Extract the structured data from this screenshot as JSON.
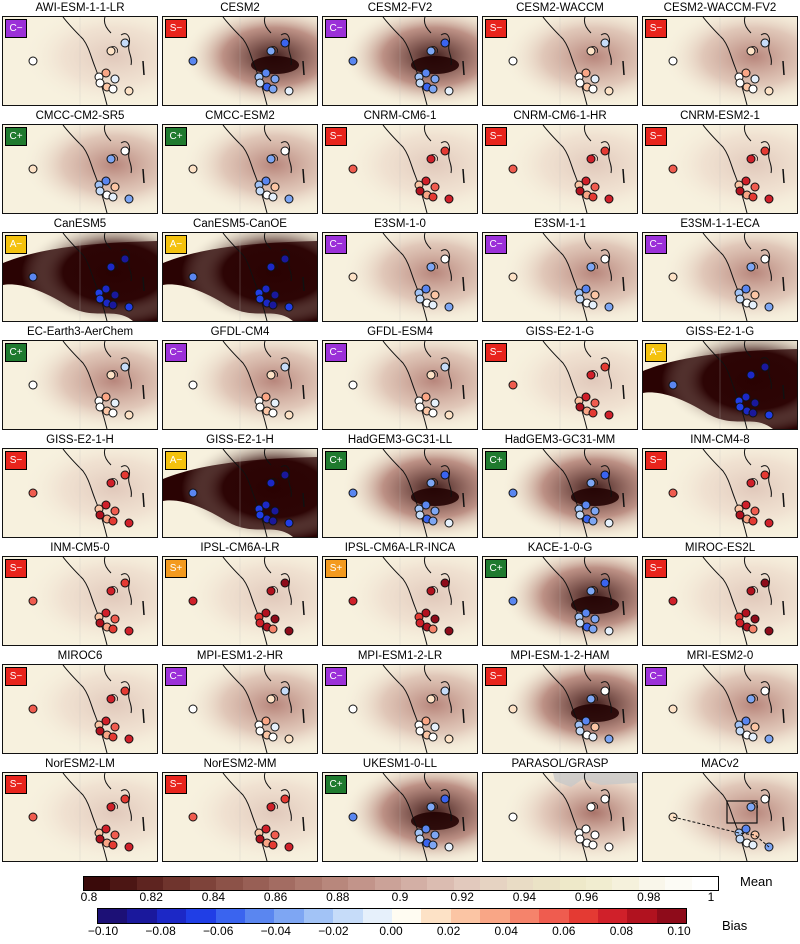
{
  "badge_colors": {
    "C": "#9b30d8",
    "S": "#e8241c",
    "A": "#f4c20d",
    "G": "#1f7a2e"
  },
  "panels": [
    {
      "title": "AWI-ESM-1-1-LR",
      "badge": "C−",
      "badge_color": "C",
      "haze": "light",
      "dots": "pale"
    },
    {
      "title": "CESM2",
      "badge": "S−",
      "badge_color": "S",
      "haze": "dark",
      "dots": "blue"
    },
    {
      "title": "CESM2-FV2",
      "badge": "C−",
      "badge_color": "C",
      "haze": "dark",
      "dots": "blue"
    },
    {
      "title": "CESM2-WACCM",
      "badge": "S−",
      "badge_color": "S",
      "haze": "medium",
      "dots": "pale"
    },
    {
      "title": "CESM2-WACCM-FV2",
      "badge": "S−",
      "badge_color": "S",
      "haze": "medium",
      "dots": "pale"
    },
    {
      "title": "CMCC-CM2-SR5",
      "badge": "C+",
      "badge_color": "G",
      "haze": "medium",
      "dots": "mixed"
    },
    {
      "title": "CMCC-ESM2",
      "badge": "C+",
      "badge_color": "G",
      "haze": "medium",
      "dots": "mixed"
    },
    {
      "title": "CNRM-CM6-1",
      "badge": "S−",
      "badge_color": "S",
      "haze": "light",
      "dots": "red"
    },
    {
      "title": "CNRM-CM6-1-HR",
      "badge": "S−",
      "badge_color": "S",
      "haze": "light",
      "dots": "red"
    },
    {
      "title": "CNRM-ESM2-1",
      "badge": "S−",
      "badge_color": "S",
      "haze": "light",
      "dots": "red"
    },
    {
      "title": "CanESM5",
      "badge": "A−",
      "badge_color": "A",
      "haze": "verydark",
      "dots": "deepblue"
    },
    {
      "title": "CanESM5-CanOE",
      "badge": "A−",
      "badge_color": "A",
      "haze": "verydark",
      "dots": "deepblue"
    },
    {
      "title": "E3SM-1-0",
      "badge": "C−",
      "badge_color": "C",
      "haze": "medium",
      "dots": "mixed"
    },
    {
      "title": "E3SM-1-1",
      "badge": "C−",
      "badge_color": "C",
      "haze": "medium",
      "dots": "mixed"
    },
    {
      "title": "E3SM-1-1-ECA",
      "badge": "C−",
      "badge_color": "C",
      "haze": "medium",
      "dots": "mixed"
    },
    {
      "title": "EC-Earth3-AerChem",
      "badge": "C+",
      "badge_color": "G",
      "haze": "medium",
      "dots": "pale"
    },
    {
      "title": "GFDL-CM4",
      "badge": "C−",
      "badge_color": "C",
      "haze": "medium",
      "dots": "pale"
    },
    {
      "title": "GFDL-ESM4",
      "badge": "C−",
      "badge_color": "C",
      "haze": "medium",
      "dots": "pale"
    },
    {
      "title": "GISS-E2-1-G",
      "badge": "S−",
      "badge_color": "S",
      "haze": "light",
      "dots": "red"
    },
    {
      "title": "GISS-E2-1-G",
      "badge": "A−",
      "badge_color": "A",
      "haze": "verydark",
      "dots": "deepblue"
    },
    {
      "title": "GISS-E2-1-H",
      "badge": "S−",
      "badge_color": "S",
      "haze": "light",
      "dots": "red"
    },
    {
      "title": "GISS-E2-1-H",
      "badge": "A−",
      "badge_color": "A",
      "haze": "verydark",
      "dots": "deepblue"
    },
    {
      "title": "HadGEM3-GC31-LL",
      "badge": "C+",
      "badge_color": "G",
      "haze": "dark",
      "dots": "blue"
    },
    {
      "title": "HadGEM3-GC31-MM",
      "badge": "C+",
      "badge_color": "G",
      "haze": "dark",
      "dots": "blue"
    },
    {
      "title": "INM-CM4-8",
      "badge": "S−",
      "badge_color": "S",
      "haze": "light",
      "dots": "red"
    },
    {
      "title": "INM-CM5-0",
      "badge": "S−",
      "badge_color": "S",
      "haze": "light",
      "dots": "red"
    },
    {
      "title": "IPSL-CM6A-LR",
      "badge": "S+",
      "badge_color": "O",
      "haze": "light",
      "dots": "darkred"
    },
    {
      "title": "IPSL-CM6A-LR-INCA",
      "badge": "S+",
      "badge_color": "O",
      "haze": "light",
      "dots": "darkred"
    },
    {
      "title": "KACE-1-0-G",
      "badge": "C+",
      "badge_color": "G",
      "haze": "dark",
      "dots": "blue"
    },
    {
      "title": "MIROC-ES2L",
      "badge": "S−",
      "badge_color": "S",
      "haze": "light",
      "dots": "darkred"
    },
    {
      "title": "MIROC6",
      "badge": "S−",
      "badge_color": "S",
      "haze": "light",
      "dots": "red"
    },
    {
      "title": "MPI-ESM1-2-HR",
      "badge": "C−",
      "badge_color": "C",
      "haze": "medium",
      "dots": "pale"
    },
    {
      "title": "MPI-ESM1-2-LR",
      "badge": "C−",
      "badge_color": "C",
      "haze": "medium",
      "dots": "pale"
    },
    {
      "title": "MPI-ESM-1-2-HAM",
      "badge": "S−",
      "badge_color": "S",
      "haze": "dark",
      "dots": "mixed"
    },
    {
      "title": "MRI-ESM2-0",
      "badge": "C−",
      "badge_color": "C",
      "haze": "medium",
      "dots": "mixed"
    },
    {
      "title": "NorESM2-LM",
      "badge": "S−",
      "badge_color": "S",
      "haze": "light",
      "dots": "red"
    },
    {
      "title": "NorESM2-MM",
      "badge": "S−",
      "badge_color": "S",
      "haze": "light",
      "dots": "red"
    },
    {
      "title": "UKESM1-0-LL",
      "badge": "C+",
      "badge_color": "G",
      "haze": "dark",
      "dots": "blue"
    },
    {
      "title": "PARASOL/GRASP",
      "badge": "",
      "badge_color": "",
      "haze": "obs",
      "dots": "white"
    },
    {
      "title": "MACv2",
      "badge": "",
      "badge_color": "",
      "haze": "medium",
      "dots": "mixed"
    }
  ],
  "mean_scale": {
    "label": "Mean",
    "ticks": [
      "0.8",
      "0.82",
      "0.84",
      "0.86",
      "0.88",
      "0.9",
      "0.92",
      "0.94",
      "0.96",
      "0.98",
      "1"
    ],
    "colors": [
      "#3a0a0a",
      "#4c1614",
      "#5e2420",
      "#6f342d",
      "#7e433a",
      "#8c5248",
      "#985f55",
      "#a36c62",
      "#ae7a6f",
      "#b8877c",
      "#c2948a",
      "#cba298",
      "#d3afa5",
      "#dbbcb1",
      "#e2c9bd",
      "#e6d3c2",
      "#e9dcc5",
      "#ebe3c6",
      "#eee9c9",
      "#f1edd0",
      "#f5f1dc",
      "#f9f6ea",
      "#fcfbf5",
      "#ffffff"
    ]
  },
  "bias_scale": {
    "label": "Bias",
    "ticks": [
      "−0.10",
      "−0.08",
      "−0.06",
      "−0.04",
      "−0.02",
      "0.00",
      "0.02",
      "0.04",
      "0.06",
      "0.08",
      "0.10"
    ],
    "colors": [
      "#1c1076",
      "#1a189c",
      "#1c28c6",
      "#203ee6",
      "#3a64ef",
      "#5a86f0",
      "#7ea6f3",
      "#a2c3f6",
      "#c6dcf9",
      "#e6f0fb",
      "#fffcf2",
      "#fde2c6",
      "#fbc5a4",
      "#f9a686",
      "#f5836b",
      "#ef5c4f",
      "#e43a33",
      "#d0202a",
      "#b1121f",
      "#8e0b1a"
    ]
  }
}
